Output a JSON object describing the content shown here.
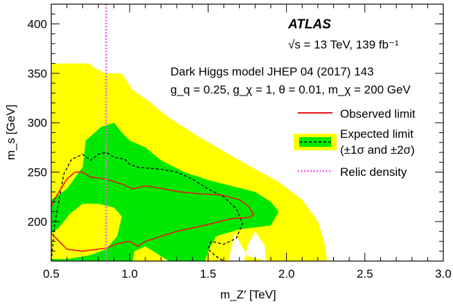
{
  "chart_data": {
    "type": "area",
    "experiment": "ATLAS",
    "energy_text": "√s = 13 TeV, 139 fb⁻¹",
    "model_line": "Dark Higgs model JHEP 04 (2017) 143",
    "params_line": "g_q = 0.25, g_χ = 1, θ = 0.01, m_χ = 200 GeV",
    "xlabel": "m_Z′ [TeV]",
    "ylabel": "m_s [GeV]",
    "xlim": [
      0.5,
      3.0
    ],
    "ylim": [
      160,
      420
    ],
    "xticks": [
      0.5,
      1.0,
      1.5,
      2.0,
      2.5,
      3.0
    ],
    "xtick_labels": [
      "0.5",
      "1.0",
      "1.5",
      "2.0",
      "2.5",
      "3.0"
    ],
    "yticks": [
      200,
      250,
      300,
      350,
      400
    ],
    "ytick_labels": [
      "200",
      "250",
      "300",
      "350",
      "400"
    ],
    "legend": {
      "placement": "right",
      "observed": "Observed limit",
      "expected_line1": "Expected limit",
      "expected_line2": "(±1σ and ±2σ)",
      "relic": "Relic density"
    },
    "colors": {
      "observed": "#e8141c",
      "expected": "#000000",
      "band1": "#00e800",
      "band2": "#ffff00",
      "relic": "#ee66ee"
    },
    "relic_density_x": 0.85,
    "band_2sigma": {
      "outer": [
        [
          0.5,
          360
        ],
        [
          0.74,
          360
        ],
        [
          0.78,
          355
        ],
        [
          0.85,
          350
        ],
        [
          0.95,
          350
        ],
        [
          1.02,
          333
        ],
        [
          1.12,
          322
        ],
        [
          1.25,
          305
        ],
        [
          1.45,
          285
        ],
        [
          1.7,
          262
        ],
        [
          1.95,
          240
        ],
        [
          2.1,
          222
        ],
        [
          2.2,
          200
        ],
        [
          2.24,
          180
        ],
        [
          2.26,
          160
        ],
        [
          1.87,
          160
        ],
        [
          1.75,
          165
        ],
        [
          1.67,
          188
        ],
        [
          1.63,
          160
        ],
        [
          0.5,
          160
        ]
      ],
      "holes": [
        [
          [
            1.73,
            160
          ],
          [
            1.75,
            175
          ],
          [
            1.8,
            190
          ],
          [
            1.86,
            176
          ],
          [
            1.87,
            160
          ]
        ],
        [
          [
            1.22,
            160
          ],
          [
            1.25,
            170
          ],
          [
            1.35,
            170
          ],
          [
            1.4,
            160
          ]
        ]
      ]
    },
    "band_1sigma": {
      "outer": [
        [
          0.5,
          222
        ],
        [
          0.6,
          233
        ],
        [
          0.7,
          255
        ],
        [
          0.72,
          282
        ],
        [
          0.82,
          296
        ],
        [
          0.9,
          300
        ],
        [
          0.95,
          290
        ],
        [
          1.0,
          282
        ],
        [
          1.1,
          275
        ],
        [
          1.2,
          262
        ],
        [
          1.35,
          250
        ],
        [
          1.5,
          242
        ],
        [
          1.65,
          236
        ],
        [
          1.8,
          230
        ],
        [
          1.9,
          220
        ],
        [
          1.95,
          210
        ],
        [
          1.9,
          196
        ],
        [
          1.7,
          192
        ],
        [
          1.55,
          185
        ],
        [
          1.5,
          170
        ],
        [
          1.48,
          160
        ],
        [
          0.5,
          160
        ]
      ],
      "holes": [
        [
          [
            0.5,
            188
          ],
          [
            0.55,
            194
          ],
          [
            0.62,
            208
          ],
          [
            0.7,
            218
          ],
          [
            0.8,
            218
          ],
          [
            0.9,
            214
          ],
          [
            0.95,
            205
          ],
          [
            0.92,
            185
          ],
          [
            0.85,
            172
          ],
          [
            0.75,
            166
          ],
          [
            0.6,
            162
          ],
          [
            0.5,
            162
          ]
        ],
        [
          [
            1.02,
            160
          ],
          [
            1.03,
            170
          ],
          [
            1.1,
            175
          ],
          [
            1.25,
            160
          ]
        ]
      ]
    },
    "expected_limit": [
      [
        0.5,
        160
      ],
      [
        0.52,
        195
      ],
      [
        0.55,
        222
      ],
      [
        0.58,
        248
      ],
      [
        0.63,
        263
      ],
      [
        0.7,
        268
      ],
      [
        0.75,
        262
      ],
      [
        0.8,
        268
      ],
      [
        0.85,
        270
      ],
      [
        0.9,
        265
      ],
      [
        0.97,
        263
      ],
      [
        1.0,
        258
      ],
      [
        1.05,
        255
      ],
      [
        1.12,
        254
      ],
      [
        1.2,
        253
      ],
      [
        1.3,
        250
      ],
      [
        1.4,
        243
      ],
      [
        1.45,
        238
      ],
      [
        1.5,
        233
      ],
      [
        1.6,
        225
      ],
      [
        1.68,
        213
      ],
      [
        1.72,
        198
      ],
      [
        1.68,
        183
      ],
      [
        1.6,
        177
      ],
      [
        1.52,
        180
      ],
      [
        1.5,
        172
      ],
      [
        1.55,
        165
      ],
      [
        1.6,
        160
      ]
    ],
    "observed_limit": [
      [
        0.5,
        215
      ],
      [
        0.53,
        225
      ],
      [
        0.6,
        243
      ],
      [
        0.65,
        250
      ],
      [
        0.7,
        250
      ],
      [
        0.75,
        245
      ],
      [
        0.85,
        243
      ],
      [
        0.95,
        238
      ],
      [
        1.02,
        233
      ],
      [
        1.1,
        236
      ],
      [
        1.15,
        235
      ],
      [
        1.25,
        232
      ],
      [
        1.32,
        230
      ],
      [
        1.45,
        228
      ],
      [
        1.58,
        227
      ],
      [
        1.7,
        222
      ],
      [
        1.76,
        215
      ],
      [
        1.79,
        207
      ],
      [
        1.76,
        204
      ],
      [
        1.65,
        203
      ],
      [
        1.5,
        197
      ],
      [
        1.3,
        190
      ],
      [
        1.1,
        180
      ],
      [
        1.05,
        175
      ],
      [
        1.0,
        180
      ],
      [
        0.93,
        178
      ],
      [
        0.85,
        173
      ],
      [
        0.7,
        170
      ],
      [
        0.6,
        172
      ],
      [
        0.55,
        180
      ],
      [
        0.5,
        188
      ]
    ]
  }
}
